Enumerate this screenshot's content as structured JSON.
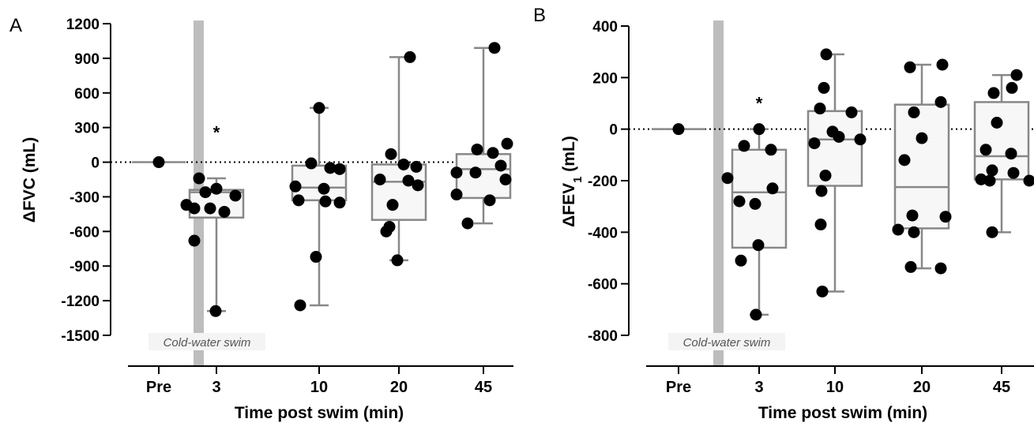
{
  "chart_data": [
    {
      "type": "box",
      "panel": "A",
      "ylabel": "ΔFVC (mL)",
      "xlabel": "Time post swim (min)",
      "categories": [
        "Pre",
        "3",
        "10",
        "20",
        "45"
      ],
      "ylim": [
        -1500,
        1200
      ],
      "yticks": [
        1200,
        900,
        600,
        300,
        0,
        -300,
        -600,
        -900,
        -1200,
        -1500
      ],
      "reference_line": 0,
      "intervention_label": "Cold-water swim",
      "significance": [
        {
          "category": "3",
          "marker": "*",
          "y": 300
        }
      ],
      "boxes": [
        {
          "category": "Pre",
          "min": 0,
          "q1": 0,
          "median": 0,
          "q3": 0,
          "max": 0
        },
        {
          "category": "3",
          "min": -1290,
          "q1": -480,
          "median": -260,
          "q3": -240,
          "max": -140
        },
        {
          "category": "10",
          "min": -1240,
          "q1": -330,
          "median": -220,
          "q3": -30,
          "max": 470
        },
        {
          "category": "20",
          "min": -850,
          "q1": -500,
          "median": -170,
          "q3": -20,
          "max": 910
        },
        {
          "category": "45",
          "min": -530,
          "q1": -310,
          "median": -60,
          "q3": 70,
          "max": 990
        }
      ],
      "points": [
        {
          "category": "Pre",
          "values": [
            0
          ]
        },
        {
          "category": "3",
          "values": [
            -140,
            -230,
            -260,
            -290,
            -370,
            -400,
            -400,
            -430,
            -680,
            -1290
          ]
        },
        {
          "category": "10",
          "values": [
            470,
            -10,
            -50,
            -60,
            -210,
            -230,
            -330,
            -340,
            -350,
            -820,
            -1240
          ]
        },
        {
          "category": "20",
          "values": [
            910,
            70,
            -20,
            -40,
            -150,
            -160,
            -200,
            -370,
            -560,
            -600,
            -850
          ]
        },
        {
          "category": "45",
          "values": [
            990,
            160,
            110,
            80,
            -30,
            -90,
            -90,
            -150,
            -280,
            -330,
            -530
          ]
        }
      ]
    },
    {
      "type": "box",
      "panel": "B",
      "ylabel": "ΔFEV",
      "ylabel_sub": "1",
      "ylabel_unit": " (mL)",
      "xlabel": "Time post swim (min)",
      "categories": [
        "Pre",
        "3",
        "10",
        "20",
        "45"
      ],
      "ylim": [
        -800,
        400
      ],
      "yticks": [
        400,
        200,
        0,
        -200,
        -400,
        -600,
        -800
      ],
      "reference_line": 0,
      "intervention_label": "Cold-water swim",
      "significance": [
        {
          "category": "3",
          "marker": "*",
          "y": 120
        }
      ],
      "boxes": [
        {
          "category": "Pre",
          "min": 0,
          "q1": 0,
          "median": 0,
          "q3": 0,
          "max": 0
        },
        {
          "category": "3",
          "min": -720,
          "q1": -460,
          "median": -245,
          "q3": -80,
          "max": 0
        },
        {
          "category": "10",
          "min": -630,
          "q1": -220,
          "median": -40,
          "q3": 70,
          "max": 290
        },
        {
          "category": "20",
          "min": -540,
          "q1": -385,
          "median": -225,
          "q3": 95,
          "max": 250
        },
        {
          "category": "45",
          "min": -400,
          "q1": -195,
          "median": -105,
          "q3": 105,
          "max": 210
        }
      ],
      "points": [
        {
          "category": "Pre",
          "values": [
            0
          ]
        },
        {
          "category": "3",
          "values": [
            0,
            -65,
            -80,
            -190,
            -230,
            -280,
            -290,
            -450,
            -510,
            -720
          ]
        },
        {
          "category": "10",
          "values": [
            290,
            160,
            80,
            65,
            -10,
            -30,
            -40,
            -55,
            -180,
            -240,
            -370,
            -630
          ]
        },
        {
          "category": "20",
          "values": [
            250,
            240,
            105,
            65,
            -35,
            -120,
            -335,
            -340,
            -390,
            -400,
            -535,
            -540
          ]
        },
        {
          "category": "45",
          "values": [
            210,
            160,
            140,
            25,
            -80,
            -95,
            -160,
            -170,
            -195,
            -200,
            -200,
            -400
          ]
        }
      ]
    }
  ]
}
